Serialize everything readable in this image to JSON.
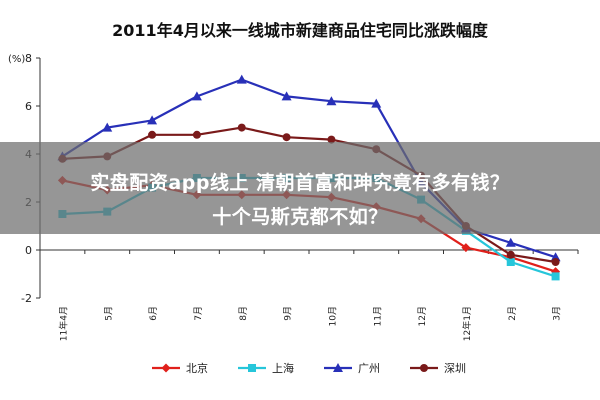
{
  "chart_data": {
    "type": "line",
    "title": "2011年4月以来一线城市新建商品住宅同比涨跌幅度",
    "ylabel": "(%)",
    "ylim": [
      -2,
      8
    ],
    "yticks": [
      "-2",
      "0",
      "2",
      "4",
      "6",
      "8"
    ],
    "ytick_values": [
      -2,
      0,
      2,
      4,
      6,
      8
    ],
    "categories": [
      "11年4月",
      "5月",
      "6月",
      "7月",
      "8月",
      "9月",
      "10月",
      "11月",
      "12月",
      "12年1月",
      "2月",
      "3月"
    ],
    "series": [
      {
        "name": "北京",
        "color": "#e0201b",
        "marker": "diamond",
        "values": [
          2.9,
          2.5,
          2.7,
          2.3,
          2.3,
          2.3,
          2.2,
          1.8,
          1.3,
          0.1,
          -0.3,
          -0.9
        ]
      },
      {
        "name": "上海",
        "color": "#26c6da",
        "marker": "square",
        "values": [
          1.5,
          1.6,
          2.6,
          3.0,
          3.0,
          3.0,
          3.0,
          3.0,
          2.1,
          0.8,
          -0.5,
          -1.1
        ]
      },
      {
        "name": "广州",
        "color": "#2830b8",
        "marker": "triangle",
        "values": [
          3.9,
          5.1,
          5.4,
          6.4,
          7.1,
          6.4,
          6.2,
          6.1,
          2.8,
          0.9,
          0.3,
          -0.3
        ]
      },
      {
        "name": "深圳",
        "color": "#7a1a1a",
        "marker": "circle",
        "values": [
          3.8,
          3.9,
          4.8,
          4.8,
          5.1,
          4.7,
          4.6,
          4.2,
          3.1,
          1.0,
          -0.2,
          -0.5
        ]
      }
    ],
    "grid": false,
    "legend_position": "bottom"
  },
  "overlay": {
    "line1": "实盘配资app线上 清朝首富和珅究竟有多有钱？",
    "line2": "十个马斯克都不如？"
  }
}
